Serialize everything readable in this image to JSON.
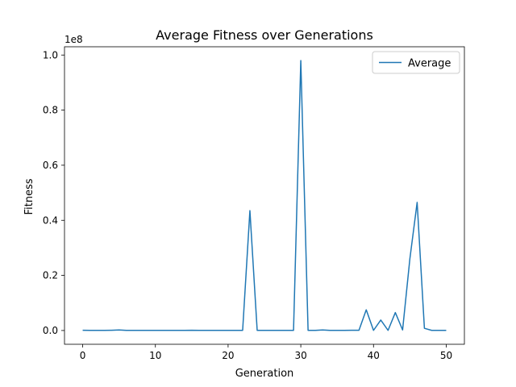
{
  "chart_data": {
    "type": "line",
    "title": "Average Fitness over Generations",
    "xlabel": "Generation",
    "ylabel": "Fitness",
    "y_offset_label": "1e8",
    "y_scale": 100000000,
    "xlim": [
      -2.5,
      52.5
    ],
    "ylim": [
      -0.05,
      1.03
    ],
    "x_ticks": [
      0,
      10,
      20,
      30,
      40,
      50
    ],
    "x_tick_labels": [
      "0",
      "10",
      "20",
      "30",
      "40",
      "50"
    ],
    "y_ticks": [
      0.0,
      0.2,
      0.4,
      0.6,
      0.8,
      1.0
    ],
    "y_tick_labels": [
      "0.0",
      "0.2",
      "0.4",
      "0.6",
      "0.8",
      "1.0"
    ],
    "grid": false,
    "legend": "top-right",
    "series": [
      {
        "name": "Average",
        "color": "#1f77b4",
        "x": [
          0,
          1,
          2,
          3,
          4,
          5,
          6,
          7,
          8,
          9,
          10,
          11,
          12,
          13,
          14,
          15,
          16,
          17,
          18,
          19,
          20,
          21,
          22,
          23,
          24,
          25,
          26,
          27,
          28,
          29,
          30,
          31,
          32,
          33,
          34,
          35,
          36,
          37,
          38,
          39,
          40,
          41,
          42,
          43,
          44,
          45,
          46,
          47,
          48,
          49,
          50
        ],
        "y": [
          0.001,
          0.0005,
          0.0005,
          0.0005,
          0.001,
          0.002,
          0.0005,
          0.0005,
          0.0005,
          0.0005,
          0.0005,
          0.0005,
          0.0005,
          0.0005,
          0.0005,
          0.001,
          0.0005,
          0.0005,
          0.0005,
          0.0005,
          0.0005,
          0.0005,
          0.0005,
          0.435,
          0.0005,
          0.0005,
          0.0005,
          0.0005,
          0.0005,
          0.0005,
          0.98,
          0.0005,
          0.0005,
          0.002,
          0.0005,
          0.0005,
          0.0005,
          0.001,
          0.001,
          0.075,
          0.0005,
          0.038,
          0.0005,
          0.065,
          0.002,
          0.26,
          0.465,
          0.008,
          0.0005,
          0.0005,
          0.0005
        ]
      }
    ]
  }
}
